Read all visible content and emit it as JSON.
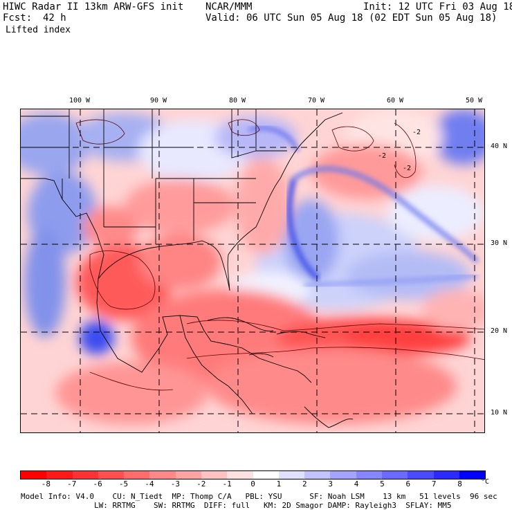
{
  "header": {
    "title_left": "HIWC Radar II 13km ARW-GFS init",
    "title_center": "NCAR/MMM",
    "init": "Init: 12 UTC Fri 03 Aug 18",
    "fcst_label": "Fcst:",
    "fcst_value": "42 h",
    "valid": "Valid: 06 UTC Sun 05 Aug 18 (02 EDT Sun 05 Aug 18)",
    "field": "Lifted index"
  },
  "map": {
    "lon_labels": [
      "100 W",
      "90 W",
      "80 W",
      "70 W",
      "60 W",
      "50 W"
    ],
    "lat_labels": [
      "40 N",
      "30 N",
      "20 N",
      "10 N"
    ],
    "contour_labels": [
      "-2",
      "-2",
      "-2"
    ],
    "colors": {
      "land_line": "#000000",
      "grid": "#000000",
      "contour": "#5a0000"
    }
  },
  "colorbar": {
    "ticks": [
      "-8",
      "-7",
      "-6",
      "-5",
      "-4",
      "-3",
      "-2",
      "-1",
      "0",
      "1",
      "2",
      "3",
      "4",
      "5",
      "6",
      "7",
      "8"
    ],
    "unit": "°C",
    "colors": [
      "#ff0000",
      "#ff1a1a",
      "#ff3333",
      "#ff5050",
      "#ff6c6c",
      "#ff8888",
      "#ffa4a4",
      "#ffc2c2",
      "#ffe0e0",
      "#ffffff",
      "#e0e0ff",
      "#c2c2ff",
      "#a4a4ff",
      "#8686ff",
      "#6a6aff",
      "#4a4aff",
      "#2b2bff",
      "#0000ff"
    ]
  },
  "footer": {
    "line1": "Model Info: V4.0    CU: N_Tiedt  MP: Thomp C/A   PBL: YSU      SF: Noah LSM    13 km   51 levels  96 sec",
    "line2": "                LW: RRTMG    SW: RRTMG  DIFF: full   KM: 2D Smagor DAMP: Rayleigh3  SFLAY: MM5"
  }
}
